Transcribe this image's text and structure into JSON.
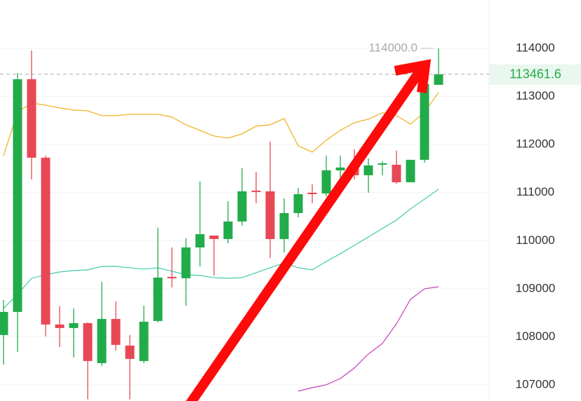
{
  "chart_data": {
    "type": "candlestick",
    "ylim": [
      106665,
      115006
    ],
    "yticks": [
      107000,
      108000,
      109000,
      110000,
      111000,
      112000,
      113000,
      114000
    ],
    "grid": true,
    "up_color": "#22ab4a",
    "down_color": "#e84855",
    "open": [
      108037,
      108518,
      113358,
      111726,
      108256,
      108183,
      108285,
      107453,
      108372,
      107818,
      107497,
      108329,
      109247,
      109218,
      109859,
      110107,
      110034,
      110399,
      111041,
      111026,
      110034,
      110574,
      110997,
      110982,
      111463,
      111565,
      111361,
      111580,
      111580,
      111215,
      111682,
      113242
    ],
    "high": [
      108766,
      113490,
      113956,
      111770,
      108635,
      108591,
      108300,
      109145,
      108737,
      108037,
      108649,
      110268,
      109859,
      110049,
      111230,
      110107,
      110822,
      111507,
      111434,
      112061,
      110880,
      111099,
      111171,
      111769,
      111769,
      111900,
      111711,
      111653,
      111871,
      111682,
      113286,
      114000
    ],
    "low": [
      107424,
      107687,
      111274,
      108008,
      107789,
      107570,
      106700,
      107395,
      107716,
      106700,
      107453,
      108300,
      109028,
      108649,
      109466,
      109276,
      109947,
      110312,
      110778,
      109641,
      109757,
      110486,
      110778,
      110924,
      111288,
      111274,
      110997,
      111361,
      111186,
      111215,
      111624,
      113242
    ],
    "close": [
      108518,
      113358,
      111726,
      108256,
      108183,
      108285,
      107497,
      108372,
      107833,
      107541,
      108314,
      109232,
      109218,
      109859,
      110136,
      110034,
      110399,
      111026,
      111012,
      110034,
      110574,
      110967,
      110967,
      111463,
      111522,
      111361,
      111565,
      111609,
      111215,
      111682,
      113256,
      113461.6
    ],
    "lines": [
      {
        "color": "#f0b429",
        "values": [
          111769,
          112673,
          112863,
          112819,
          112761,
          112717,
          112702,
          112600,
          112600,
          112629,
          112629,
          112629,
          112571,
          112410,
          112294,
          112177,
          112133,
          112221,
          112382,
          112410,
          112542,
          111973,
          111842,
          112090,
          112294,
          112455,
          112527,
          112659,
          112600,
          112425,
          112673,
          113081
        ]
      },
      {
        "color": "#4fcfb0",
        "values": [
          108591,
          108883,
          109218,
          109291,
          109349,
          109378,
          109393,
          109466,
          109466,
          109436,
          109407,
          109436,
          109364,
          109291,
          109276,
          109232,
          109218,
          109232,
          109334,
          109436,
          109538,
          109436,
          109393,
          109568,
          109728,
          109903,
          110078,
          110253,
          110428,
          110661,
          110865,
          111070
        ]
      },
      {
        "color": "#c84fc0",
        "values": [
          null,
          null,
          null,
          null,
          null,
          null,
          null,
          null,
          null,
          null,
          null,
          null,
          null,
          null,
          null,
          null,
          null,
          null,
          null,
          null,
          null,
          106870,
          106943,
          107002,
          107133,
          107351,
          107643,
          107862,
          108270,
          108780,
          108999,
          109043
        ]
      }
    ],
    "last_price": 113461.6,
    "high_marker": {
      "value": 114000,
      "label": "114000.0"
    }
  }
}
